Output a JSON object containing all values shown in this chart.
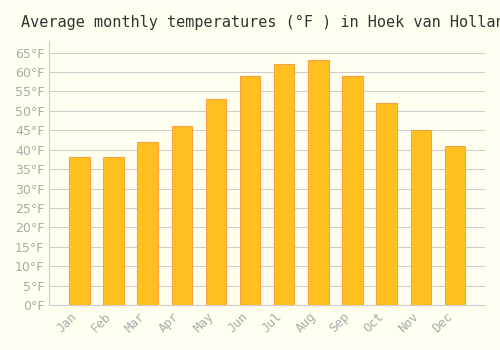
{
  "title": "Average monthly temperatures (°F ) in Hoek van Holland",
  "months": [
    "Jan",
    "Feb",
    "Mar",
    "Apr",
    "May",
    "Jun",
    "Jul",
    "Aug",
    "Sep",
    "Oct",
    "Nov",
    "Dec"
  ],
  "values": [
    38,
    38,
    42,
    46,
    53,
    59,
    62,
    63,
    59,
    52,
    45,
    41
  ],
  "bar_color_face": "#FFC020",
  "bar_color_edge": "#FFA040",
  "background_color": "#FFFFF0",
  "grid_color": "#CCCCCC",
  "text_color": "#AAAAAA",
  "ylim": [
    0,
    68
  ],
  "yticks": [
    0,
    5,
    10,
    15,
    20,
    25,
    30,
    35,
    40,
    45,
    50,
    55,
    60,
    65
  ],
  "ylabel_format": "°F",
  "title_fontsize": 11,
  "tick_fontsize": 9,
  "figsize": [
    5.0,
    3.5
  ],
  "dpi": 100
}
